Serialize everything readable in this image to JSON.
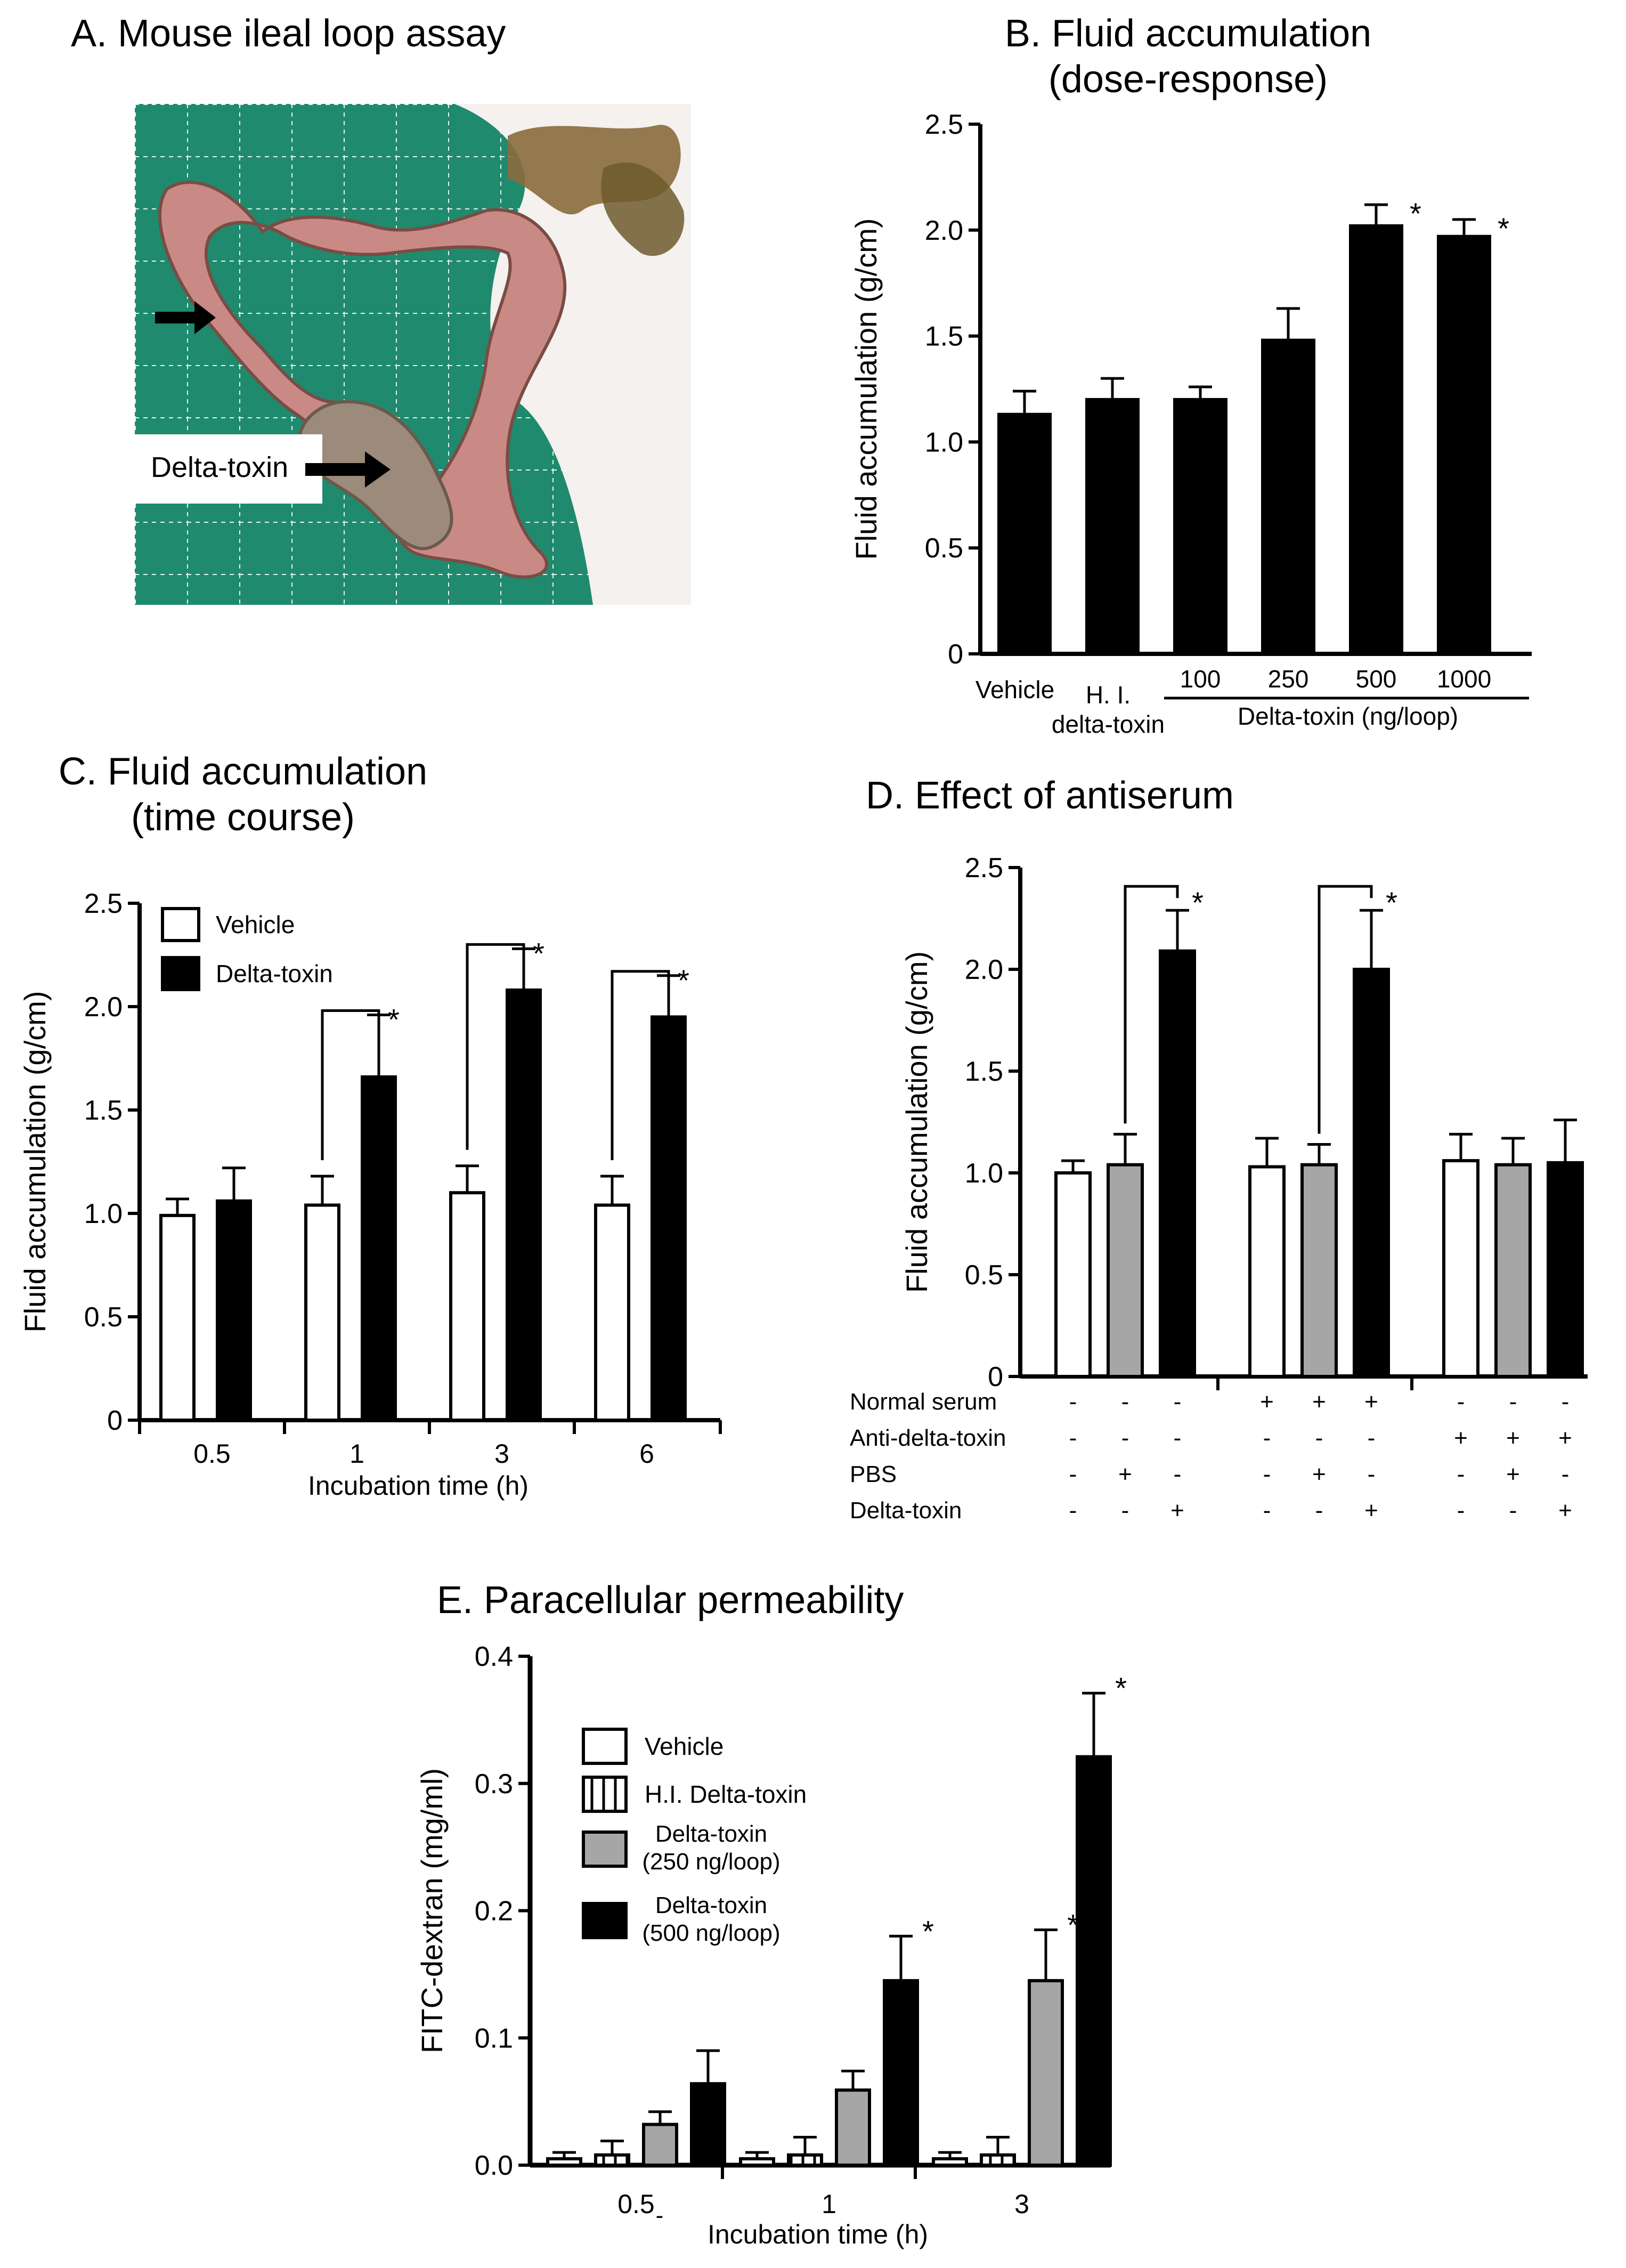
{
  "panel_a": {
    "title": "A. Mouse ileal loop assay",
    "label": "Delta-toxin",
    "colors": {
      "mat": "#1f8a6e",
      "grid": "#e8f4ef",
      "tissue": "#c98a86",
      "tissue_dark": "#7a4c44",
      "bg": "#f4f1ee"
    }
  },
  "panel_b": {
    "title_line1": "B. Fluid accumulation",
    "title_line2": "(dose-response)",
    "group_label": "Delta-toxin  (ng/loop)"
  },
  "panel_c": {
    "title_line1": "C. Fluid accumulation",
    "title_line2": "(time course)"
  },
  "panel_d": {
    "title": "D. Effect of antiserum",
    "row_labels": [
      "Normal serum",
      "Anti-delta-toxin",
      "PBS",
      "Delta-toxin"
    ],
    "signs": [
      [
        "-",
        "-",
        "-",
        "+",
        "+",
        "+",
        "-",
        "-",
        "-"
      ],
      [
        "-",
        "-",
        "-",
        "-",
        "-",
        "-",
        "+",
        "+",
        "+"
      ],
      [
        "-",
        "+",
        "-",
        "-",
        "+",
        "-",
        "-",
        "+",
        "-"
      ],
      [
        "-",
        "-",
        "+",
        "-",
        "-",
        "+",
        "-",
        "-",
        "+"
      ]
    ]
  },
  "panel_e": {
    "title": "E. Paracellular permeability"
  },
  "chart_data": [
    {
      "id": "B",
      "type": "bar",
      "title": "B. Fluid accumulation (dose-response)",
      "ylabel": "Fluid accumulation (g/cm)",
      "xlabel": "",
      "ylim": [
        0,
        2.5
      ],
      "yticks": [
        "0",
        "0.5",
        "1.0",
        "1.5",
        "2.0",
        "2.5"
      ],
      "categories": [
        "Vehicle",
        "H. I. delta-toxin",
        "100",
        "250",
        "500",
        "1000"
      ],
      "values": [
        1.13,
        1.2,
        1.2,
        1.48,
        2.02,
        1.97
      ],
      "errors": [
        0.11,
        0.1,
        0.06,
        0.15,
        0.1,
        0.08
      ],
      "significant": [
        false,
        false,
        false,
        false,
        true,
        true
      ],
      "colors": [
        "#000000",
        "#000000",
        "#000000",
        "#000000",
        "#000000",
        "#000000"
      ]
    },
    {
      "id": "C",
      "type": "bar",
      "title": "C. Fluid accumulation (time course)",
      "ylabel": "Fluid accumulation (g/cm)",
      "xlabel": "Incubation time (h)",
      "ylim": [
        0,
        2.5
      ],
      "yticks": [
        "0",
        "0.5",
        "1.0",
        "1.5",
        "2.0",
        "2.5"
      ],
      "categories": [
        "0.5",
        "1",
        "3",
        "6"
      ],
      "series": [
        {
          "name": "Vehicle",
          "color": "#ffffff",
          "values": [
            0.99,
            1.04,
            1.1,
            1.04
          ],
          "errors": [
            0.08,
            0.14,
            0.13,
            0.14
          ]
        },
        {
          "name": "Delta-toxin",
          "color": "#000000",
          "values": [
            1.06,
            1.66,
            2.08,
            1.95
          ],
          "errors": [
            0.16,
            0.3,
            0.2,
            0.2
          ]
        }
      ],
      "significant": [
        false,
        true,
        true,
        true
      ]
    },
    {
      "id": "D",
      "type": "bar",
      "title": "D. Effect of antiserum",
      "ylabel": "Fluid accumulation (g/cm)",
      "xlabel": "",
      "ylim": [
        0,
        2.5
      ],
      "yticks": [
        "0",
        "0.5",
        "1.0",
        "1.5",
        "2.0",
        "2.5"
      ],
      "groups": [
        {
          "values": [
            1.0,
            1.04,
            2.09
          ],
          "errors": [
            0.06,
            0.15,
            0.2
          ]
        },
        {
          "values": [
            1.03,
            1.04,
            2.0
          ],
          "errors": [
            0.14,
            0.1,
            0.29
          ]
        },
        {
          "values": [
            1.06,
            1.04,
            1.05
          ],
          "errors": [
            0.13,
            0.13,
            0.21
          ]
        }
      ],
      "bar_colors": [
        "#ffffff",
        "#a6a6a6",
        "#000000"
      ],
      "significant_groups": [
        0,
        1
      ]
    },
    {
      "id": "E",
      "type": "bar",
      "title": "E. Paracellular permeability",
      "ylabel": "FITC-dextran (mg/ml)",
      "xlabel": "Incubation time (h)",
      "ylim": [
        0,
        0.4
      ],
      "yticks": [
        "0.0",
        "0.1",
        "0.2",
        "0.3",
        "0.4"
      ],
      "categories": [
        "0.5",
        "1",
        "3"
      ],
      "series": [
        {
          "name": "Vehicle",
          "color": "#ffffff",
          "values": [
            0.005,
            0.005,
            0.005
          ],
          "errors": [
            0.005,
            0.005,
            0.005
          ]
        },
        {
          "name": "H.I. Delta-toxin",
          "color": "hatched",
          "values": [
            0.008,
            0.008,
            0.008
          ],
          "errors": [
            0.011,
            0.014,
            0.014
          ]
        },
        {
          "name": "Delta-toxin (250 ng/loop)",
          "name_line1": "Delta-toxin",
          "name_line2": "(250 ng/loop)",
          "color": "#a6a6a6",
          "values": [
            0.032,
            0.059,
            0.145
          ],
          "errors": [
            0.01,
            0.015,
            0.04
          ]
        },
        {
          "name": "Delta-toxin (500 ng/loop)",
          "name_line1": "Delta-toxin",
          "name_line2": "(500 ng/loop)",
          "color": "#000000",
          "values": [
            0.064,
            0.145,
            0.321
          ],
          "errors": [
            0.026,
            0.035,
            0.05
          ]
        }
      ],
      "significant": [
        [
          false,
          false,
          false,
          false
        ],
        [
          false,
          false,
          false,
          true
        ],
        [
          false,
          false,
          true,
          true
        ]
      ],
      "stray_mark": "-"
    }
  ]
}
